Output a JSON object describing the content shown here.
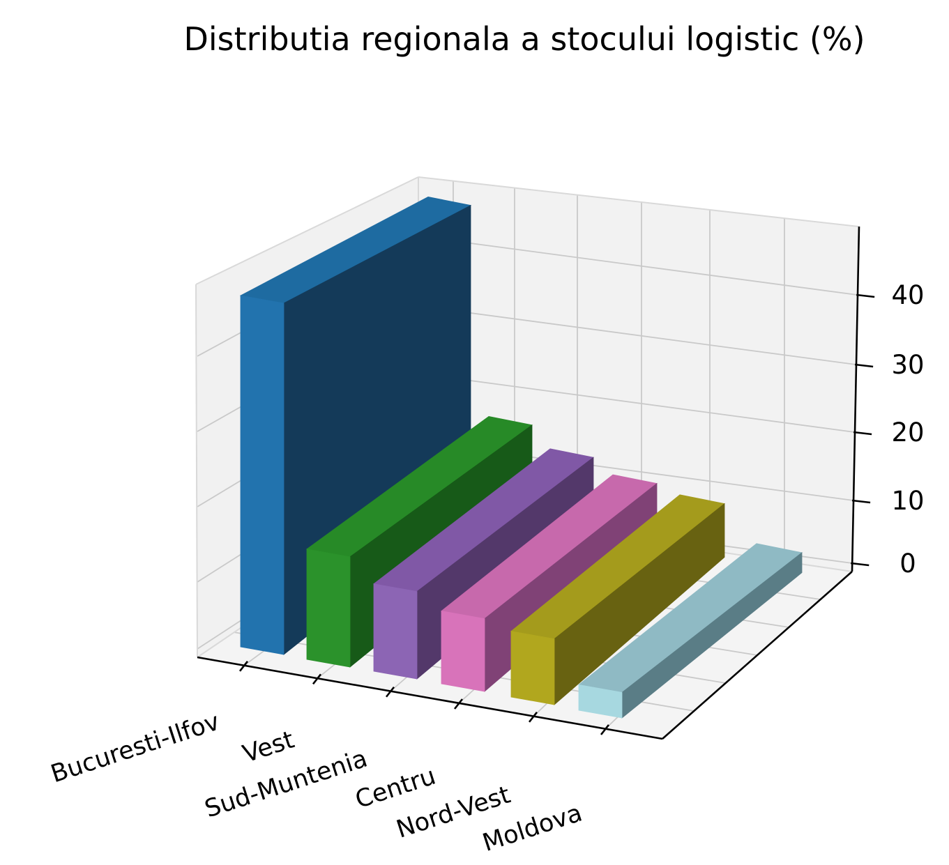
{
  "title": "Distributia regionala a stocului logistic (%)",
  "chart_data": {
    "type": "bar",
    "projection": "3d",
    "title": "Distributia regionala a stocului logistic (%)",
    "categories": [
      "Bucuresti-Ilfov",
      "Vest",
      "Sud-Muntenia",
      "Centru",
      "Nord-Vest",
      "Moldova"
    ],
    "values": [
      45,
      14,
      11,
      9,
      8,
      3
    ],
    "unit": "%",
    "xlabel": "",
    "ylabel": "",
    "zlabel": "",
    "z_ticks": [
      0,
      10,
      20,
      30,
      40
    ],
    "zlim": [
      0,
      40
    ],
    "grid": true,
    "legend": false,
    "bar_colors": [
      {
        "category": "Bucuresti-Ilfov",
        "base": "#1f77b4",
        "front": "#2273ae",
        "top": "#1e6ba1",
        "side": "#143a59"
      },
      {
        "category": "Vest",
        "base": "#2ca02c",
        "front": "#2b922b",
        "top": "#278a27",
        "side": "#175a18"
      },
      {
        "category": "Sud-Muntenia",
        "base": "#9467bd",
        "front": "#8c65b4",
        "top": "#8058a6",
        "side": "#53386a"
      },
      {
        "category": "Centru",
        "base": "#e377c2",
        "front": "#d873ba",
        "top": "#c769ac",
        "side": "#804276"
      },
      {
        "category": "Nord-Vest",
        "base": "#bcbd22",
        "front": "#b1a71e",
        "top": "#a49b1c",
        "side": "#686211"
      },
      {
        "category": "Moldova",
        "base": "#9edae5",
        "front": "#a7d8e0",
        "top": "#8fbac4",
        "side": "#5a7d86"
      }
    ]
  },
  "colors": {
    "background": "#ffffff",
    "pane_floor": "#f4f4f4",
    "pane_left": "#f1f1f1",
    "pane_back": "#f2f2f2",
    "gridline": "#c9c9c9",
    "pane_edge": "#d9d9d9",
    "axis": "#000000",
    "text": "#000000"
  }
}
